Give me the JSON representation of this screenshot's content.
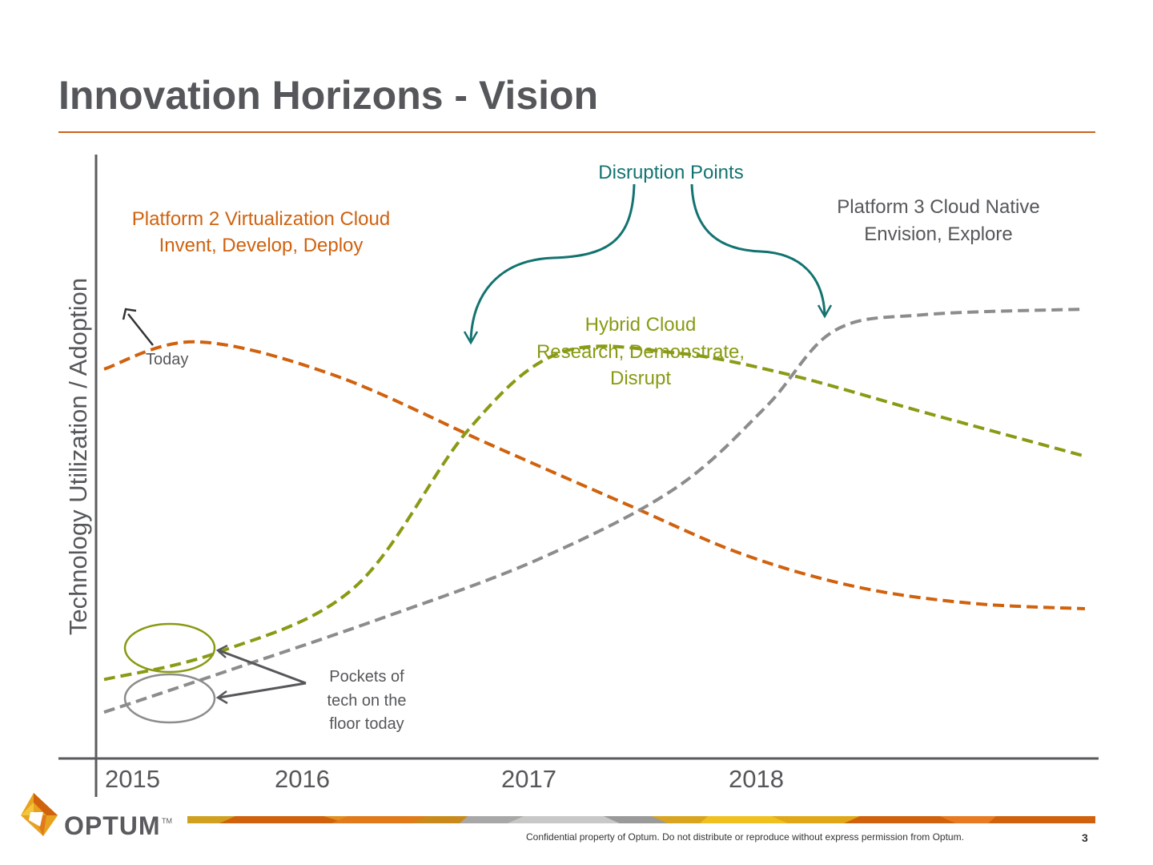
{
  "slide": {
    "title": "Innovation Horizons - Vision",
    "footer": "Confidential property of Optum. Do not distribute or reproduce without express permission from Optum.",
    "page_number": "3",
    "brand": "OPTUM",
    "brand_tm": "TM"
  },
  "colors": {
    "platform2": "#d0620e",
    "hybrid": "#8a9a14",
    "platform3": "#8c8c8c",
    "disruption": "#137370",
    "axis": "#5a5b5e",
    "title_rule": "#c8641a"
  },
  "chart_data": {
    "type": "line",
    "ylabel": "Technology Utilization / Adoption",
    "x_ticks": [
      "2015",
      "2016",
      "2017",
      "2018"
    ],
    "series": [
      {
        "name": "Platform 2 Virtualization Cloud",
        "subtitle": "Invent, Develop, Deploy",
        "style": "dashed",
        "x": [
          2015.0,
          2015.4,
          2016.0,
          2016.7,
          2017.3,
          2017.8,
          2018.3,
          2018.8,
          2019.3
        ],
        "y": [
          0.69,
          0.74,
          0.68,
          0.55,
          0.44,
          0.35,
          0.29,
          0.26,
          0.25
        ]
      },
      {
        "name": "Hybrid Cloud",
        "subtitle": "Research, Demonstrate, Disrupt",
        "style": "dashed",
        "x": [
          2015.0,
          2015.5,
          2016.1,
          2016.6,
          2017.0,
          2017.5,
          2018.0,
          2018.6,
          2019.3
        ],
        "y": [
          0.12,
          0.17,
          0.29,
          0.58,
          0.72,
          0.72,
          0.68,
          0.61,
          0.53
        ]
      },
      {
        "name": "Platform 3 Cloud Native",
        "subtitle": "Envision, Explore",
        "style": "dashed",
        "x": [
          2015.0,
          2015.5,
          2016.2,
          2016.9,
          2017.5,
          2017.9,
          2018.2,
          2018.6,
          2019.3
        ],
        "y": [
          0.06,
          0.13,
          0.23,
          0.34,
          0.47,
          0.62,
          0.76,
          0.79,
          0.8
        ]
      }
    ],
    "annotations": {
      "disruption": "Disruption Points",
      "today": "Today",
      "pockets": [
        "Pockets of",
        "tech on the",
        "floor today"
      ]
    },
    "legend": "none",
    "grid": false
  }
}
